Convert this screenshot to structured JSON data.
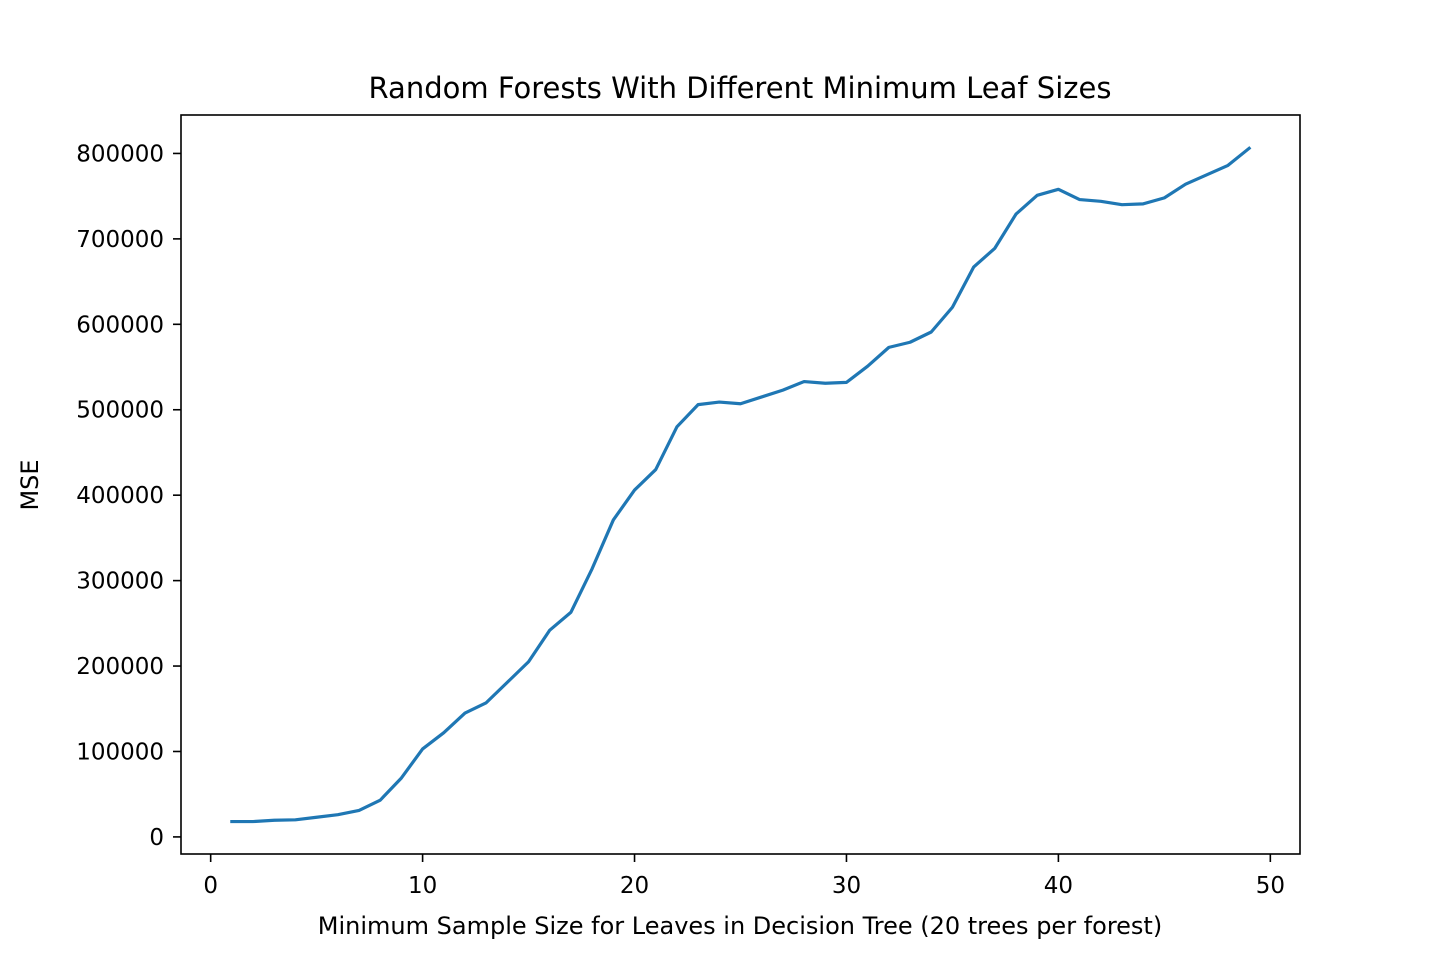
{
  "chart_data": {
    "type": "line",
    "title": "Random Forests With Different Minimum Leaf Sizes",
    "xlabel": "Minimum Sample Size for Leaves in Decision Tree (20 trees per forest)",
    "ylabel": "MSE",
    "xlim": [
      -1.4,
      51.4
    ],
    "ylim": [
      -20000,
      845000
    ],
    "x_ticks": [
      0,
      10,
      20,
      30,
      40,
      50
    ],
    "y_ticks": [
      0,
      100000,
      200000,
      300000,
      400000,
      500000,
      600000,
      700000,
      800000
    ],
    "x_tick_labels": [
      "0",
      "10",
      "20",
      "30",
      "40",
      "50"
    ],
    "y_tick_labels": [
      "0",
      "100000",
      "200000",
      "300000",
      "400000",
      "500000",
      "600000",
      "700000",
      "800000"
    ],
    "grid": false,
    "series": [
      {
        "color": "#1f77b4",
        "x": [
          1,
          2,
          3,
          4,
          5,
          6,
          7,
          8,
          9,
          10,
          11,
          12,
          13,
          14,
          15,
          16,
          17,
          18,
          19,
          20,
          21,
          22,
          23,
          24,
          25,
          26,
          27,
          28,
          29,
          30,
          31,
          32,
          33,
          34,
          35,
          36,
          37,
          38,
          39,
          40,
          41,
          42,
          43,
          44,
          45,
          46,
          47,
          48,
          49
        ],
        "y": [
          18000,
          18000,
          19500,
          20000,
          23000,
          26000,
          31000,
          43000,
          69000,
          103000,
          122000,
          145000,
          157000,
          181000,
          205000,
          242000,
          263000,
          314000,
          371000,
          406000,
          430000,
          480000,
          506000,
          509000,
          507000,
          515000,
          523000,
          533000,
          531000,
          532000,
          551000,
          573000,
          579000,
          591000,
          620000,
          667000,
          689000,
          729000,
          751000,
          758000,
          746000,
          744000,
          740000,
          741000,
          748000,
          764000,
          775000,
          786000,
          806000
        ]
      }
    ]
  }
}
